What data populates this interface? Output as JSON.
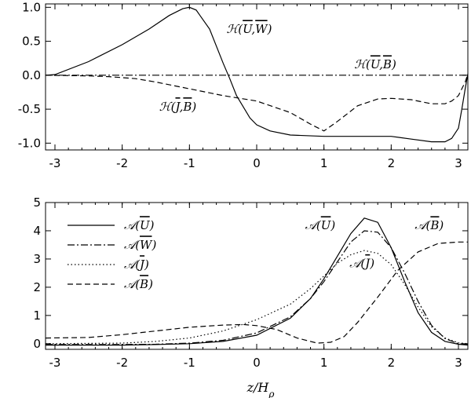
{
  "chart_data": [
    {
      "type": "line",
      "xlim": [
        -3.14,
        3.14
      ],
      "ylim": [
        -1.1,
        1.05
      ],
      "xticks": [
        "-3",
        "-2",
        "-1",
        "0",
        "1",
        "2",
        "3"
      ],
      "yticks": [
        "1.0",
        "0.5",
        "0.0",
        "-0.5",
        "-1.0"
      ],
      "annotations": [
        {
          "text": "ℋ(U,W)",
          "x": -0.45,
          "y": 0.62,
          "bars": [
            "U",
            "W"
          ]
        },
        {
          "text": "ℋ(U,B)",
          "x": 1.45,
          "y": 0.1,
          "bars": [
            "U",
            "B"
          ]
        },
        {
          "text": "ℋ(J,B)",
          "x": -1.45,
          "y": -0.52,
          "bars": [
            "J",
            "B"
          ]
        }
      ],
      "series": [
        {
          "style": "solid",
          "x": [
            -3.14,
            -3,
            -2.5,
            -2,
            -1.6,
            -1.3,
            -1.1,
            -1.0,
            -0.9,
            -0.7,
            -0.5,
            -0.4,
            -0.3,
            -0.1,
            0,
            0.2,
            0.5,
            1,
            1.5,
            2,
            2.3,
            2.6,
            2.8,
            2.9,
            3.0,
            3.05,
            3.1,
            3.14
          ],
          "y": [
            0,
            0.01,
            0.2,
            0.45,
            0.68,
            0.88,
            0.98,
            1.0,
            0.96,
            0.68,
            0.18,
            -0.05,
            -0.3,
            -0.63,
            -0.73,
            -0.82,
            -0.88,
            -0.9,
            -0.9,
            -0.9,
            -0.94,
            -0.98,
            -0.98,
            -0.93,
            -0.78,
            -0.5,
            -0.2,
            0.02
          ]
        },
        {
          "style": "dash",
          "x": [
            -3.14,
            -2.5,
            -2.2,
            -1.8,
            -1.5,
            -1,
            -0.5,
            0,
            0.5,
            0.8,
            1,
            1.2,
            1.5,
            1.8,
            2,
            2.3,
            2.6,
            2.8,
            2.9,
            3.0,
            3.1,
            3.14
          ],
          "y": [
            0,
            -0.01,
            -0.02,
            -0.05,
            -0.1,
            -0.2,
            -0.3,
            -0.38,
            -0.55,
            -0.72,
            -0.82,
            -0.68,
            -0.45,
            -0.35,
            -0.34,
            -0.36,
            -0.42,
            -0.42,
            -0.38,
            -0.3,
            -0.1,
            0.02
          ]
        },
        {
          "style": "dashdot",
          "x": [
            -3.14,
            3.14
          ],
          "y": [
            0,
            0
          ]
        }
      ]
    },
    {
      "type": "line",
      "xlim": [
        -3.14,
        3.14
      ],
      "ylim": [
        -0.2,
        5.0
      ],
      "xticks": [
        "-3",
        "-2",
        "-1",
        "0",
        "1",
        "2",
        "3"
      ],
      "yticks": [
        "5",
        "4",
        "3",
        "2",
        "1",
        "0"
      ],
      "xlabel": "z/Hρ",
      "legend": {
        "position": "top-left",
        "entries": [
          {
            "style": "solid",
            "label": "𝒜(U)",
            "bar": "U"
          },
          {
            "style": "dashdot",
            "label": "𝒜(W)",
            "bar": "W"
          },
          {
            "style": "dot",
            "label": "𝒜(J)",
            "bar": "J"
          },
          {
            "style": "dash",
            "label": "𝒜(B)",
            "bar": "B"
          }
        ]
      },
      "annotations": [
        {
          "text": "𝒜(U)",
          "x": 0.72,
          "y": 4.05,
          "bars": [
            "U"
          ]
        },
        {
          "text": "𝒜(J)",
          "x": 1.38,
          "y": 2.7,
          "bars": [
            "J"
          ]
        },
        {
          "text": "𝒜(B)",
          "x": 2.35,
          "y": 4.05,
          "bars": [
            "B"
          ]
        }
      ],
      "series": [
        {
          "style": "solid",
          "x": [
            -3.14,
            -2,
            -1.5,
            -1,
            -0.5,
            0,
            0.5,
            0.8,
            1,
            1.2,
            1.4,
            1.6,
            1.8,
            2,
            2.2,
            2.4,
            2.6,
            2.8,
            3.0,
            3.14
          ],
          "y": [
            -0.05,
            -0.05,
            -0.03,
            0,
            0.08,
            0.3,
            0.9,
            1.6,
            2.3,
            3.1,
            3.9,
            4.45,
            4.3,
            3.4,
            2.2,
            1.1,
            0.4,
            0.08,
            -0.02,
            -0.05
          ]
        },
        {
          "style": "dashdot",
          "x": [
            -3.14,
            -2,
            -1.5,
            -1,
            -0.5,
            0,
            0.5,
            0.8,
            1,
            1.2,
            1.4,
            1.6,
            1.8,
            2,
            2.2,
            2.4,
            2.6,
            2.8,
            3.0,
            3.14
          ],
          "y": [
            -0.03,
            -0.03,
            -0.02,
            0.02,
            0.12,
            0.38,
            0.95,
            1.6,
            2.2,
            2.9,
            3.6,
            4.0,
            3.95,
            3.4,
            2.5,
            1.5,
            0.65,
            0.18,
            0.0,
            -0.02
          ]
        },
        {
          "style": "dot",
          "x": [
            -3.14,
            -2,
            -1.5,
            -1,
            -0.5,
            0,
            0.5,
            0.8,
            1,
            1.2,
            1.4,
            1.6,
            1.8,
            2,
            2.2,
            2.4,
            2.6,
            2.8,
            3.0,
            3.14
          ],
          "y": [
            0.0,
            0.02,
            0.08,
            0.2,
            0.45,
            0.85,
            1.4,
            1.95,
            2.4,
            2.85,
            3.15,
            3.3,
            3.2,
            2.8,
            2.1,
            1.3,
            0.6,
            0.2,
            0.03,
            0.0
          ]
        },
        {
          "style": "dash",
          "x": [
            -3.14,
            -2.5,
            -2,
            -1.5,
            -1,
            -0.5,
            -0.2,
            0,
            0.3,
            0.6,
            0.9,
            1.1,
            1.3,
            1.5,
            1.8,
            2.1,
            2.4,
            2.7,
            3.0,
            3.14
          ],
          "y": [
            0.2,
            0.22,
            0.32,
            0.45,
            0.58,
            0.66,
            0.68,
            0.64,
            0.5,
            0.2,
            0.02,
            0.05,
            0.25,
            0.75,
            1.65,
            2.6,
            3.25,
            3.55,
            3.6,
            3.6
          ]
        }
      ]
    }
  ]
}
